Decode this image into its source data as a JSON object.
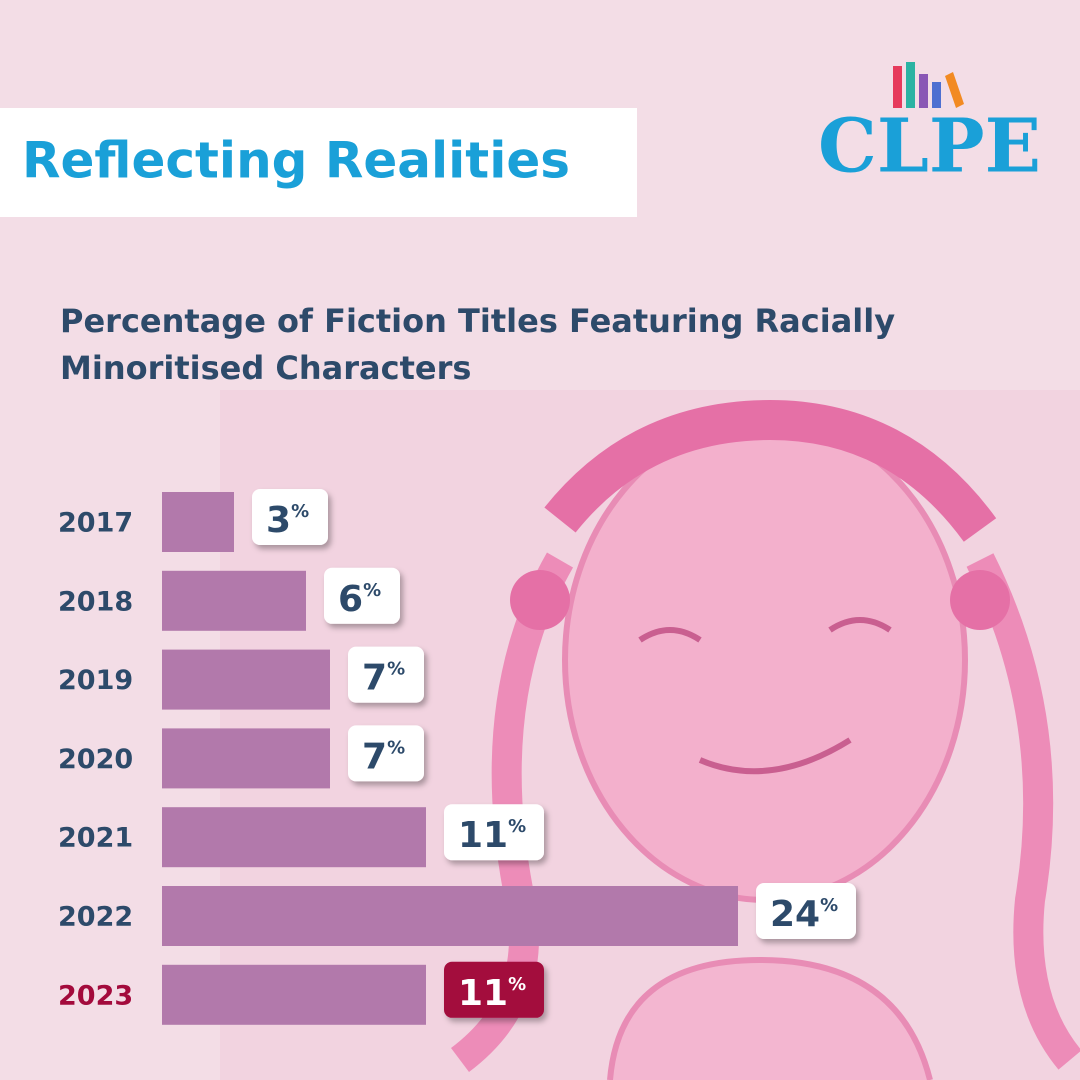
{
  "header": {
    "banner": "Reflecting Realities",
    "logo": "CLPE"
  },
  "chart_data": {
    "type": "bar",
    "orientation": "horizontal",
    "title": "Percentage of Fiction Titles Featuring Racially Minoritised Characters",
    "categories": [
      "2017",
      "2018",
      "2019",
      "2020",
      "2021",
      "2022",
      "2023"
    ],
    "values": [
      3,
      6,
      7,
      7,
      11,
      24,
      11
    ],
    "value_labels": [
      "3%",
      "6%",
      "7%",
      "7%",
      "11%",
      "24%",
      "11%"
    ],
    "color": "#b279ab",
    "highlight": {
      "category": "2023",
      "color": "#a30a3c"
    }
  }
}
